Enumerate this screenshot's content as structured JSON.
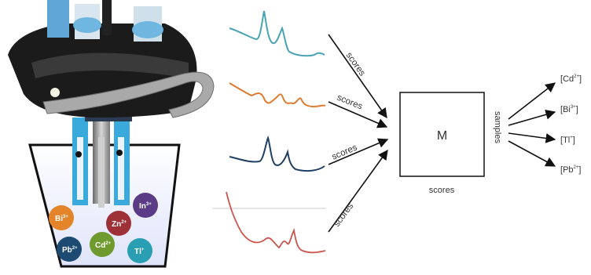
{
  "figure": {
    "background": "#ffffff",
    "colors": {
      "curve_teal": "#4aa3b4",
      "curve_orange": "#e07a2e",
      "curve_navy": "#1f3f63",
      "curve_red": "#c9544c",
      "arrow": "#111111",
      "text": "#444444",
      "beaker_fill": "#e8ecfb"
    }
  },
  "photo": {
    "description_icon": "electrode-array-photo",
    "ions": [
      {
        "base": "Bi",
        "charge": "3+",
        "color": "#e3832a"
      },
      {
        "base": "Zn",
        "charge": "2+",
        "color": "#9e3138"
      },
      {
        "base": "In",
        "charge": "3+",
        "color": "#5b3b86"
      },
      {
        "base": "Pb",
        "charge": "2+",
        "color": "#1d4a73"
      },
      {
        "base": "Cd",
        "charge": "2+",
        "color": "#6f9a2e"
      },
      {
        "base": "Tl",
        "charge": "+",
        "color": "#2a9fb3"
      }
    ]
  },
  "arrows": {
    "curve_labels": [
      "scores",
      "scores",
      "scores",
      "scores"
    ]
  },
  "matrix": {
    "label": "M",
    "bottom_label": "scores",
    "side_label": "samples"
  },
  "outputs": [
    {
      "ion": "Cd",
      "charge": "2+"
    },
    {
      "ion": "Bi",
      "charge": "3+"
    },
    {
      "ion": "Tl",
      "charge": "+"
    },
    {
      "ion": "Pb",
      "charge": "2+"
    }
  ]
}
